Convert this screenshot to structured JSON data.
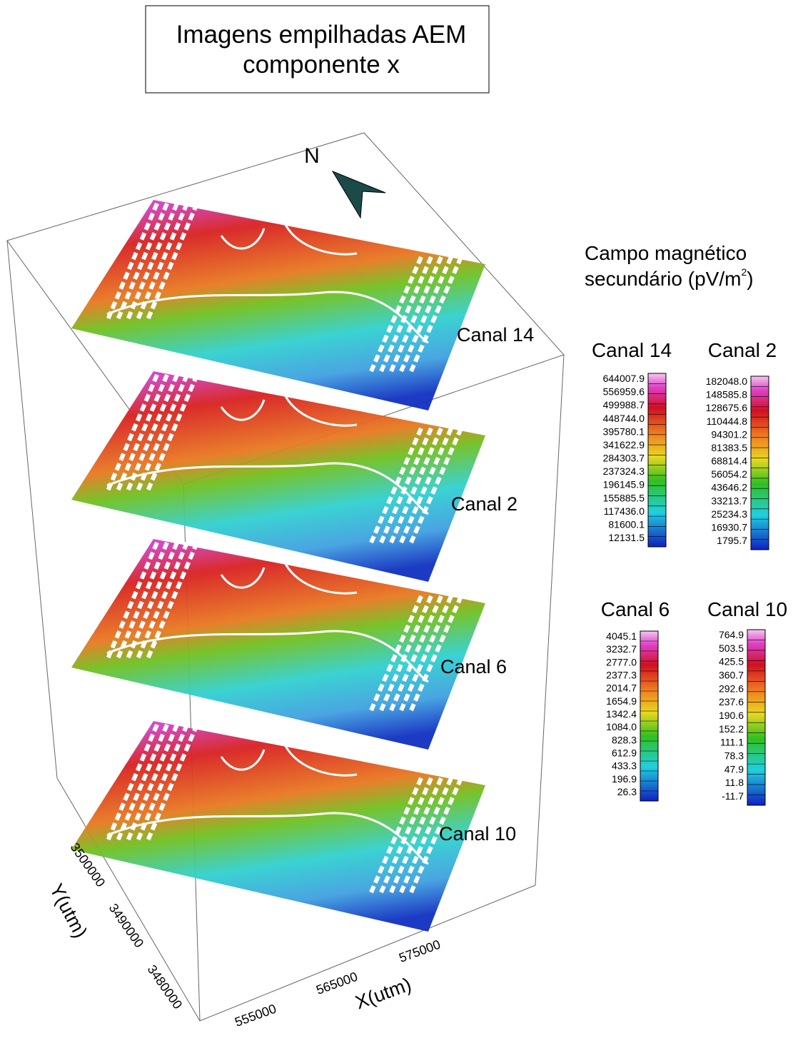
{
  "title": {
    "line1": "Imagens empilhadas AEM",
    "line2": "componente x"
  },
  "north": "N",
  "layers": [
    "Canal 14",
    "Canal 2",
    "Canal 6",
    "Canal 10"
  ],
  "legend": {
    "line1": "Campo magnético",
    "line2": "secundário (pV/m",
    "exponent": "2",
    "close": ")",
    "colorbars": [
      {
        "title": "Canal  14",
        "labels": [
          "644007.9",
          "556959.6",
          "499988.7",
          "448744.0",
          "395780.1",
          "341622.9",
          "284303.7",
          "237324.3",
          "196145.9",
          "155885.5",
          "117436.0",
          "81600.1",
          "12131.5"
        ]
      },
      {
        "title": "Canal  2",
        "labels": [
          "182048.0",
          "148585.8",
          "128675.6",
          "110444.8",
          "94301.2",
          "81383.5",
          "68814.4",
          "56054.2",
          "43646.2",
          "33213.7",
          "25234.3",
          "16930.7",
          "1795.7"
        ]
      },
      {
        "title": "Canal 6",
        "labels": [
          "4045.1",
          "3232.7",
          "2777.0",
          "2377.3",
          "2014.7",
          "1654.9",
          "1342.4",
          "1084.0",
          "828.3",
          "612.9",
          "433.3",
          "196.9",
          "26.3"
        ]
      },
      {
        "title": "Canal 10",
        "labels": [
          "764.9",
          "503.5",
          "425.5",
          "360.7",
          "292.6",
          "237.6",
          "190.6",
          "152.2",
          "111.1",
          "78.3",
          "47.9",
          "11.8",
          "-11.7"
        ]
      }
    ]
  },
  "axes": {
    "y_label": "Y(utm)",
    "y_ticks": [
      "3500000",
      "3490000",
      "3480000"
    ],
    "x_label": "X(utm)",
    "x_ticks": [
      "555000",
      "565000",
      "575000"
    ]
  }
}
